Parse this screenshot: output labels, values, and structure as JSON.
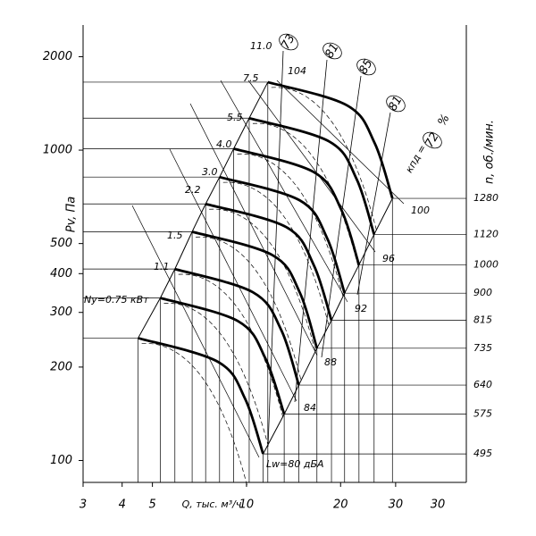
{
  "chart_data": {
    "type": "line",
    "xlabel": "Q, тыс. м³/ч",
    "ylabel": "Pv, Па",
    "y2label": "n, об./мин.",
    "xscale": "log",
    "yscale": "log",
    "xlim": [
      3,
      50.5
    ],
    "ylim": [
      85,
      2530
    ],
    "xticks": [
      3,
      4,
      5,
      10,
      20,
      30
    ],
    "yticks": [
      100,
      200,
      300,
      400,
      500,
      1000,
      2000
    ],
    "color": "#000000",
    "series": [
      {
        "name": "1280",
        "x": [
          11.7,
          21.0,
          25.7,
          29.3
        ],
        "values": [
          1656,
          1393,
          1054,
          699
        ]
      },
      {
        "name": "1120",
        "x": [
          10.2,
          18.4,
          22.5,
          25.6
        ],
        "values": [
          1268,
          1066,
          807,
          535
        ]
      },
      {
        "name": "1000",
        "x": [
          9.1,
          16.4,
          20.1,
          22.9
        ],
        "values": [
          1011,
          850,
          643,
          427
        ]
      },
      {
        "name": "900",
        "x": [
          8.2,
          14.8,
          18.1,
          20.6
        ],
        "values": [
          819,
          689,
          521,
          346
        ]
      },
      {
        "name": "815",
        "x": [
          7.4,
          13.4,
          16.4,
          18.7
        ],
        "values": [
          671,
          565,
          427,
          283
        ]
      },
      {
        "name": "735",
        "x": [
          6.7,
          12.1,
          14.8,
          16.8
        ],
        "values": [
          546,
          459,
          348,
          230
        ]
      },
      {
        "name": "640",
        "x": [
          5.9,
          10.5,
          12.9,
          14.7
        ],
        "values": [
          414,
          348,
          264,
          175
        ]
      },
      {
        "name": "575",
        "x": [
          5.3,
          9.4,
          11.5,
          13.2
        ],
        "values": [
          334,
          281,
          213,
          141
        ]
      },
      {
        "name": "495",
        "x": [
          4.5,
          8.1,
          9.9,
          11.3
        ],
        "values": [
          248,
          208,
          158,
          105
        ]
      }
    ],
    "power_labels": [
      "11.0",
      "7.5",
      "5.5",
      "4.0",
      "3.0",
      "2.2",
      "1.5",
      "1.1",
      "Ny=0.75 кВт"
    ],
    "noise_labels": [
      "104",
      "100",
      "96",
      "92",
      "88",
      "84",
      "Lw=80 дБА"
    ],
    "efficiency_labels": [
      "73",
      "81",
      "85",
      "81",
      "72"
    ],
    "efficiency_title": "кпд =",
    "efficiency_unit": "%",
    "extra_x_label": "30"
  }
}
